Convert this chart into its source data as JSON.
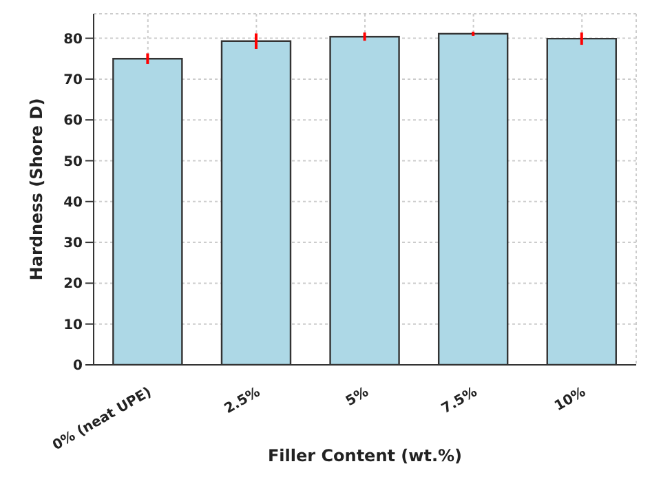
{
  "chart_data": {
    "type": "bar",
    "xlabel": "Filler Content (wt.%)",
    "ylabel": "Hardness (Shore D)",
    "categories": [
      "0% (neat UPE)",
      "2.5%",
      "5%",
      "7.5%",
      "10%"
    ],
    "values": [
      75,
      79.3,
      80.4,
      81.1,
      79.9
    ],
    "errors": [
      1.3,
      1.9,
      1.0,
      0.5,
      1.5
    ],
    "color": "#add8e6",
    "ylim": [
      0,
      86
    ],
    "yticks": [
      0,
      10,
      20,
      30,
      40,
      50,
      60,
      70,
      80
    ],
    "grid": true
  }
}
